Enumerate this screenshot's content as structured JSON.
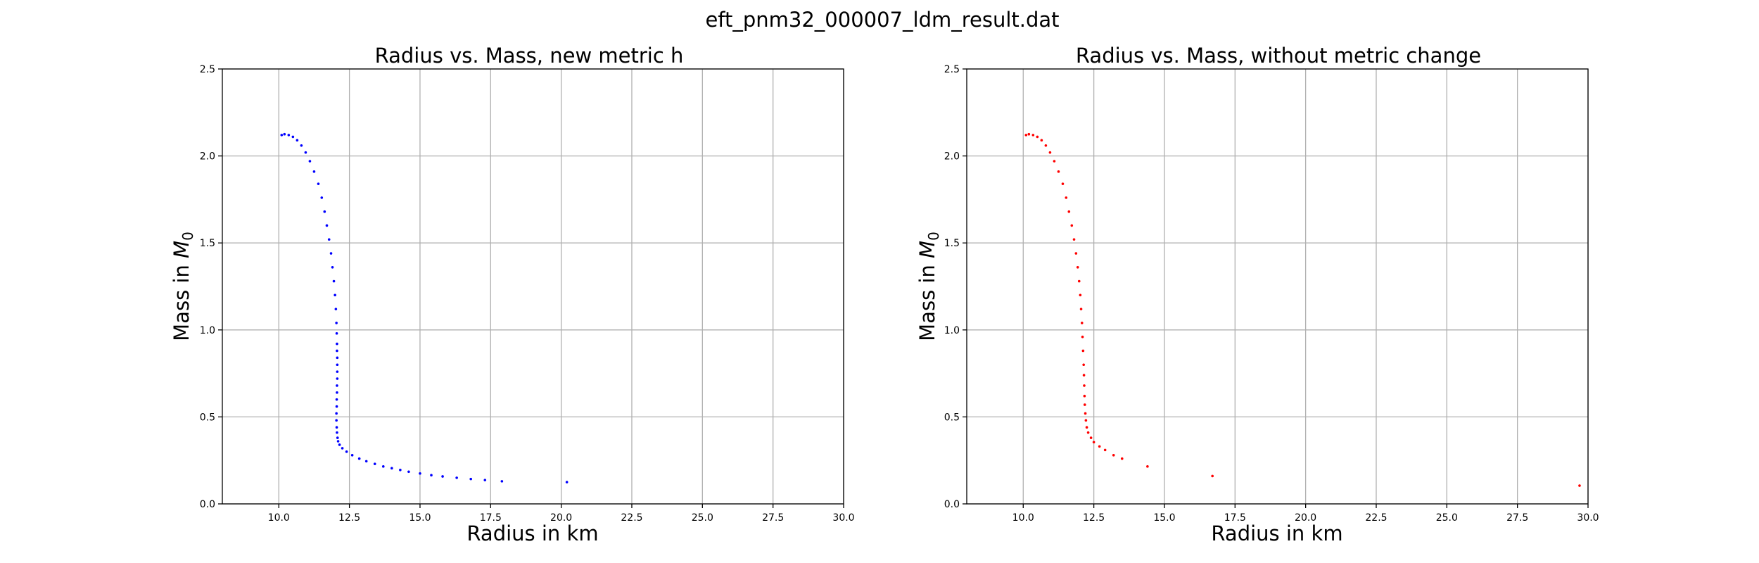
{
  "figure": {
    "suptitle": "eft_pnm32_000007_ldm_result.dat"
  },
  "chart_data": [
    {
      "type": "scatter",
      "title": "Radius vs. Mass, new metric h",
      "xlabel": "Radius in km",
      "ylabel": "Mass in ",
      "ylabel_math": "M",
      "ylabel_sub": "0",
      "xlim": [
        8.0,
        30.0
      ],
      "ylim": [
        0.0,
        2.5
      ],
      "xticks": [
        10.0,
        12.5,
        15.0,
        17.5,
        20.0,
        22.5,
        25.0,
        27.5,
        30.0
      ],
      "yticks": [
        0.0,
        0.5,
        1.0,
        1.5,
        2.0,
        2.5
      ],
      "xtick_labels": [
        "10.0",
        "12.5",
        "15.0",
        "17.5",
        "20.0",
        "22.5",
        "25.0",
        "27.5",
        "30.0"
      ],
      "ytick_labels": [
        "0.0",
        "0.5",
        "1.0",
        "1.5",
        "2.0",
        "2.5"
      ],
      "grid": true,
      "color": "#0000ff",
      "x": [
        10.1,
        10.2,
        10.35,
        10.5,
        10.65,
        10.8,
        10.95,
        11.1,
        11.25,
        11.4,
        11.52,
        11.62,
        11.7,
        11.78,
        11.85,
        11.9,
        11.95,
        11.99,
        12.02,
        12.04,
        12.05,
        12.06,
        12.06,
        12.07,
        12.07,
        12.07,
        12.07,
        12.06,
        12.06,
        12.05,
        12.05,
        12.04,
        12.04,
        12.05,
        12.06,
        12.08,
        12.1,
        12.15,
        12.25,
        12.4,
        12.6,
        12.85,
        13.1,
        13.4,
        13.7,
        14.0,
        14.3,
        14.6,
        15.0,
        15.4,
        15.8,
        16.3,
        16.8,
        17.3,
        17.9,
        20.2
      ],
      "y": [
        2.12,
        2.125,
        2.12,
        2.11,
        2.09,
        2.06,
        2.02,
        1.97,
        1.91,
        1.84,
        1.76,
        1.68,
        1.6,
        1.52,
        1.44,
        1.36,
        1.28,
        1.2,
        1.12,
        1.04,
        0.98,
        0.92,
        0.88,
        0.84,
        0.8,
        0.76,
        0.72,
        0.68,
        0.64,
        0.6,
        0.56,
        0.52,
        0.48,
        0.44,
        0.41,
        0.38,
        0.36,
        0.34,
        0.32,
        0.3,
        0.28,
        0.26,
        0.245,
        0.23,
        0.215,
        0.205,
        0.195,
        0.185,
        0.175,
        0.165,
        0.158,
        0.15,
        0.143,
        0.137,
        0.13,
        0.125
      ]
    },
    {
      "type": "scatter",
      "title": "Radius vs. Mass, without metric change",
      "xlabel": "Radius in km",
      "ylabel": "Mass in ",
      "ylabel_math": "M",
      "ylabel_sub": "0",
      "xlim": [
        8.0,
        30.0
      ],
      "ylim": [
        0.0,
        2.5
      ],
      "xticks": [
        10.0,
        12.5,
        15.0,
        17.5,
        20.0,
        22.5,
        25.0,
        27.5,
        30.0
      ],
      "yticks": [
        0.0,
        0.5,
        1.0,
        1.5,
        2.0,
        2.5
      ],
      "xtick_labels": [
        "10.0",
        "12.5",
        "15.0",
        "17.5",
        "20.0",
        "22.5",
        "25.0",
        "27.5",
        "30.0"
      ],
      "ytick_labels": [
        "0.0",
        "0.5",
        "1.0",
        "1.5",
        "2.0",
        "2.5"
      ],
      "grid": true,
      "color": "#ff0000",
      "x": [
        10.1,
        10.2,
        10.35,
        10.5,
        10.65,
        10.8,
        10.95,
        11.1,
        11.25,
        11.4,
        11.52,
        11.62,
        11.72,
        11.8,
        11.87,
        11.93,
        11.98,
        12.02,
        12.05,
        12.08,
        12.1,
        12.12,
        12.14,
        12.15,
        12.16,
        12.17,
        12.18,
        12.2,
        12.22,
        12.25,
        12.3,
        12.4,
        12.5,
        12.7,
        12.9,
        13.2,
        13.5,
        14.4,
        16.7,
        29.7
      ],
      "y": [
        2.12,
        2.125,
        2.12,
        2.11,
        2.09,
        2.06,
        2.02,
        1.97,
        1.91,
        1.84,
        1.76,
        1.68,
        1.6,
        1.52,
        1.44,
        1.36,
        1.28,
        1.2,
        1.12,
        1.04,
        0.96,
        0.88,
        0.8,
        0.74,
        0.68,
        0.62,
        0.57,
        0.52,
        0.48,
        0.44,
        0.41,
        0.38,
        0.355,
        0.33,
        0.31,
        0.28,
        0.26,
        0.215,
        0.16,
        0.105
      ]
    }
  ]
}
